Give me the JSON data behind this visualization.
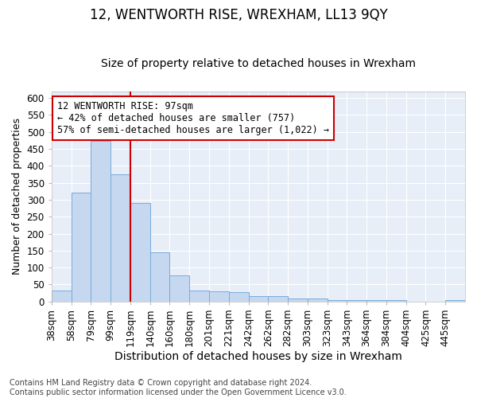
{
  "title": "12, WENTWORTH RISE, WREXHAM, LL13 9QY",
  "subtitle": "Size of property relative to detached houses in Wrexham",
  "xlabel": "Distribution of detached houses by size in Wrexham",
  "ylabel": "Number of detached properties",
  "footnote": "Contains HM Land Registry data © Crown copyright and database right 2024.\nContains public sector information licensed under the Open Government Licence v3.0.",
  "bin_labels": [
    "38sqm",
    "58sqm",
    "79sqm",
    "99sqm",
    "119sqm",
    "140sqm",
    "160sqm",
    "180sqm",
    "201sqm",
    "221sqm",
    "242sqm",
    "262sqm",
    "282sqm",
    "303sqm",
    "323sqm",
    "343sqm",
    "364sqm",
    "384sqm",
    "404sqm",
    "425sqm",
    "445sqm"
  ],
  "bar_values": [
    32,
    322,
    473,
    374,
    291,
    144,
    76,
    32,
    29,
    27,
    16,
    16,
    8,
    8,
    5,
    5,
    5,
    5,
    0,
    0,
    5
  ],
  "bar_color": "#c5d8f0",
  "bar_edge_color": "#7aabda",
  "property_size_bin": 4,
  "property_label": "12 WENTWORTH RISE: 97sqm",
  "annotation_line1": "← 42% of detached houses are smaller (757)",
  "annotation_line2": "57% of semi-detached houses are larger (1,022) →",
  "vline_x_bin_index": 3,
  "vline_color": "#cc0000",
  "annotation_box_color": "#cc0000",
  "ylim": [
    0,
    620
  ],
  "yticks": [
    0,
    50,
    100,
    150,
    200,
    250,
    300,
    350,
    400,
    450,
    500,
    550,
    600
  ],
  "background_color": "#e8eef8",
  "grid_color": "#ffffff",
  "title_fontsize": 12,
  "subtitle_fontsize": 10,
  "xlabel_fontsize": 10,
  "ylabel_fontsize": 9,
  "tick_fontsize": 8.5,
  "annot_fontsize": 8.5,
  "footnote_fontsize": 7
}
